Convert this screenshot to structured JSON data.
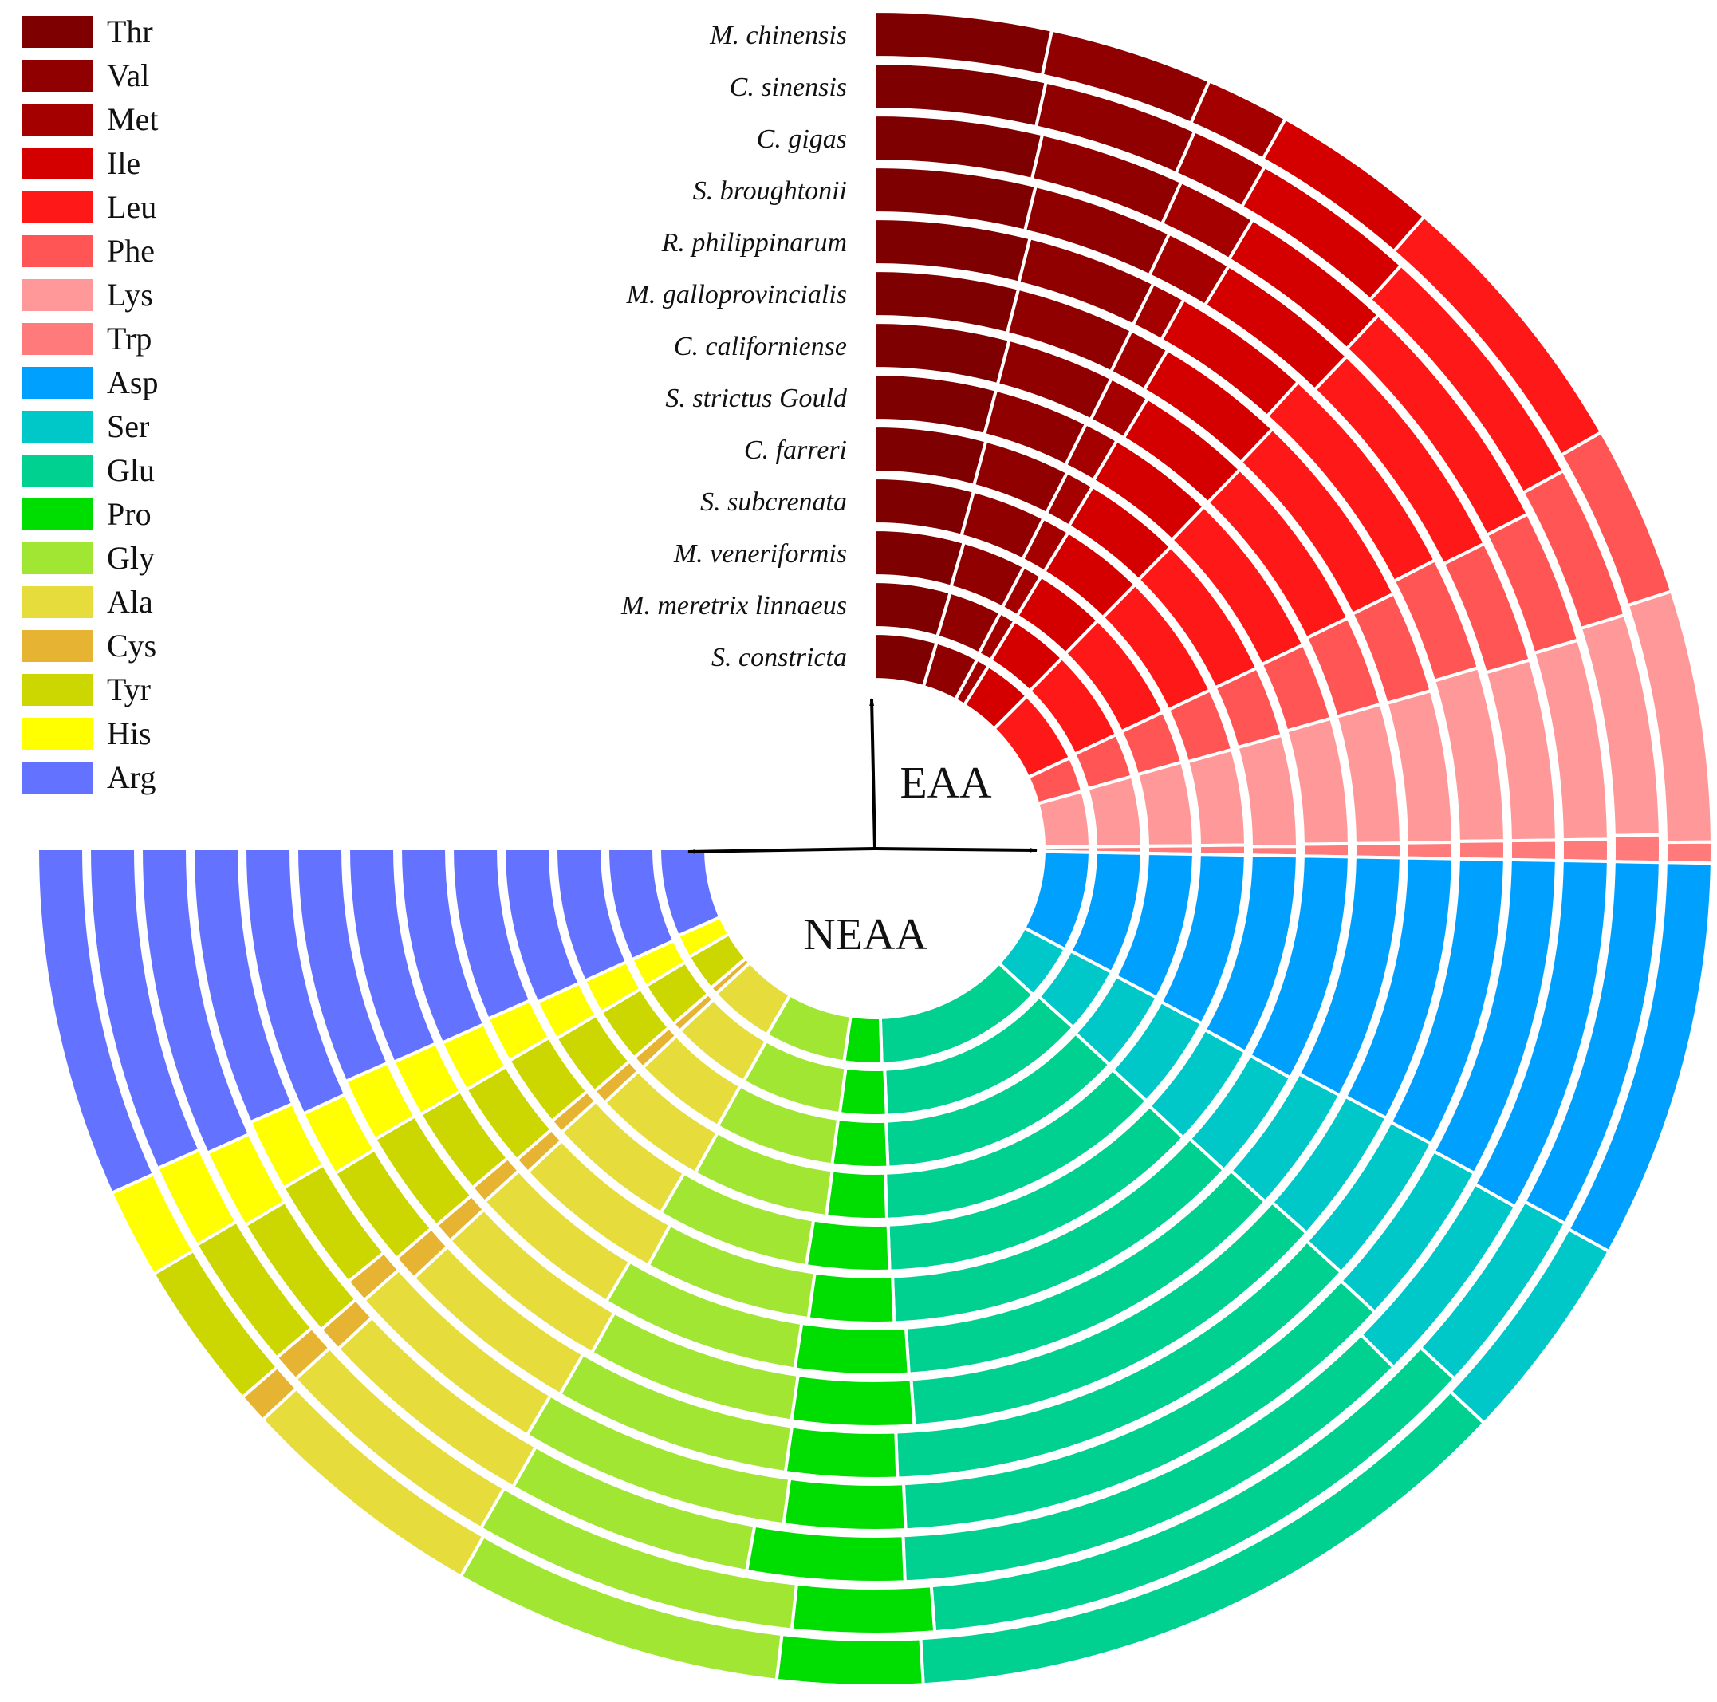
{
  "chart_data": {
    "type": "radial stacked bar",
    "section_labels": {
      "eaa": "EAA",
      "neaa": "NEAA"
    },
    "legend": [
      {
        "name": "Thr",
        "color": "#7f0000"
      },
      {
        "name": "Val",
        "color": "#910000"
      },
      {
        "name": "Met",
        "color": "#a40000"
      },
      {
        "name": "Ile",
        "color": "#d40000"
      },
      {
        "name": "Leu",
        "color": "#ff1818"
      },
      {
        "name": "Phe",
        "color": "#ff5555"
      },
      {
        "name": "Lys",
        "color": "#ff9999"
      },
      {
        "name": "Trp",
        "color": "#ff7a7a"
      },
      {
        "name": "Asp",
        "color": "#00a0ff"
      },
      {
        "name": "Ser",
        "color": "#00c8c8"
      },
      {
        "name": "Glu",
        "color": "#00d090"
      },
      {
        "name": "Pro",
        "color": "#00dd00"
      },
      {
        "name": "Gly",
        "color": "#a0e632"
      },
      {
        "name": "Ala",
        "color": "#e6dc3c"
      },
      {
        "name": "Cys",
        "color": "#e6b432"
      },
      {
        "name": "Tyr",
        "color": "#ccd600"
      },
      {
        "name": "His",
        "color": "#ffff00"
      },
      {
        "name": "Arg",
        "color": "#6473ff"
      }
    ],
    "eaa_order": [
      "Thr",
      "Val",
      "Met",
      "Ile",
      "Leu",
      "Phe",
      "Lys",
      "Trp"
    ],
    "neaa_order": [
      "Asp",
      "Ser",
      "Glu",
      "Pro",
      "Gly",
      "Ala",
      "Cys",
      "Tyr",
      "His",
      "Arg"
    ],
    "species": [
      {
        "name": "M. chinensis",
        "eaa": [
          4.2,
          3.9,
          2.0,
          4.0,
          6.6,
          4.1,
          6.0,
          0.5
        ],
        "neaa": [
          8.0,
          4.2,
          12.5,
          2.9,
          6.6,
          5.0,
          0.6,
          3.0,
          1.8,
          7.0
        ]
      },
      {
        "name": "C. sinensis",
        "eaa": [
          4.4,
          4.0,
          2.0,
          4.3,
          6.7,
          4.0,
          5.7,
          0.7
        ],
        "neaa": [
          7.9,
          4.0,
          12.4,
          3.0,
          6.9,
          5.0,
          0.6,
          2.9,
          1.8,
          6.9
        ]
      },
      {
        "name": "C. gigas",
        "eaa": [
          4.6,
          4.0,
          2.2,
          4.3,
          6.8,
          3.7,
          5.5,
          0.6
        ],
        "neaa": [
          8.4,
          4.7,
          12.7,
          3.7,
          5.8,
          5.2,
          0.6,
          3.0,
          1.9,
          7.3
        ]
      },
      {
        "name": "S. broughtonii",
        "eaa": [
          4.8,
          4.2,
          2.0,
          4.4,
          6.9,
          3.7,
          5.4,
          0.6
        ],
        "neaa": [
          8.0,
          4.2,
          13.0,
          3.0,
          6.7,
          5.2,
          0.6,
          2.8,
          1.8,
          6.9
        ]
      },
      {
        "name": "R. philippinarum",
        "eaa": [
          5.0,
          4.2,
          1.1,
          4.5,
          7.2,
          3.7,
          5.6,
          0.6
        ],
        "neaa": [
          7.9,
          4.2,
          13.4,
          3.0,
          6.4,
          5.0,
          0.7,
          2.8,
          1.8,
          7.3
        ]
      },
      {
        "name": "M. galloprovincialis",
        "eaa": [
          5.3,
          4.4,
          1.5,
          4.8,
          7.5,
          3.8,
          5.6,
          0.6
        ],
        "neaa": [
          7.9,
          4.1,
          13.1,
          3.6,
          6.2,
          5.3,
          0.6,
          3.1,
          1.9,
          7.0
        ]
      },
      {
        "name": "C. californiense",
        "eaa": [
          5.6,
          4.5,
          1.7,
          4.8,
          7.6,
          3.8,
          5.8,
          0.6
        ],
        "neaa": [
          8.0,
          4.2,
          13.1,
          3.7,
          6.5,
          5.1,
          0.6,
          2.9,
          1.9,
          7.1
        ]
      },
      {
        "name": "S. strictus Gould",
        "eaa": [
          5.6,
          4.4,
          1.6,
          5.0,
          7.8,
          3.6,
          5.8,
          0.6
        ],
        "neaa": [
          8.3,
          4.1,
          13.4,
          3.1,
          6.1,
          5.5,
          0.6,
          3.1,
          1.9,
          7.2
        ]
      },
      {
        "name": "C. farreri",
        "eaa": [
          5.8,
          4.5,
          1.5,
          5.1,
          7.7,
          3.7,
          5.8,
          0.5
        ],
        "neaa": [
          8.3,
          4.3,
          13.4,
          3.4,
          6.3,
          5.2,
          0.6,
          3.0,
          1.9,
          7.1
        ]
      },
      {
        "name": "S. subcrenata",
        "eaa": [
          6.0,
          4.5,
          1.7,
          5.1,
          7.8,
          3.8,
          5.8,
          0.6
        ],
        "neaa": [
          8.1,
          4.4,
          13.5,
          2.8,
          6.4,
          5.3,
          0.7,
          3.0,
          1.9,
          7.3
        ]
      },
      {
        "name": "M. veneriformis",
        "eaa": [
          6.4,
          4.6,
          1.4,
          5.1,
          8.0,
          3.8,
          6.0,
          0.6
        ],
        "neaa": [
          8.0,
          4.4,
          13.4,
          3.0,
          6.5,
          5.1,
          0.7,
          3.0,
          1.9,
          7.3
        ]
      },
      {
        "name": "M. meretrix linnaeus",
        "eaa": [
          6.5,
          4.6,
          1.4,
          5.1,
          8.0,
          3.8,
          6.0,
          0.6
        ],
        "neaa": [
          7.9,
          4.3,
          13.5,
          3.0,
          6.5,
          5.2,
          0.6,
          3.0,
          1.9,
          7.3
        ]
      },
      {
        "name": "S. constricta",
        "eaa": [
          6.7,
          4.7,
          1.4,
          5.2,
          8.1,
          3.8,
          6.0,
          0.6
        ],
        "neaa": [
          8.0,
          4.4,
          13.5,
          3.0,
          6.5,
          5.2,
          0.6,
          3.0,
          1.9,
          7.1
        ]
      }
    ]
  }
}
